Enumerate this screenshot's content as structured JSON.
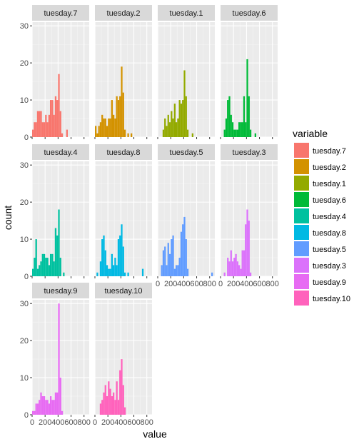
{
  "chart_data": {
    "type": "bar",
    "subtype": "faceted-histogram",
    "title": "",
    "xlabel": "value",
    "ylabel": "count",
    "xlim": [
      0,
      880
    ],
    "ylim": [
      0,
      31
    ],
    "x_ticks": [
      0,
      200,
      400,
      600,
      800
    ],
    "x_tick_labels": [
      "0",
      "200",
      "400",
      "600",
      "800"
    ],
    "y_ticks": [
      0,
      10,
      20,
      30
    ],
    "y_tick_labels": [
      "0",
      "10",
      "20",
      "30"
    ],
    "bin_width": 25,
    "grid": true,
    "legend": {
      "title": "variable",
      "position": "right"
    },
    "panels": [
      {
        "name": "tuesday.7",
        "color": "#F8766D",
        "bins": [
          {
            "x": 0,
            "count": 2
          },
          {
            "x": 25,
            "count": 4
          },
          {
            "x": 50,
            "count": 4
          },
          {
            "x": 75,
            "count": 7
          },
          {
            "x": 100,
            "count": 7
          },
          {
            "x": 125,
            "count": 7
          },
          {
            "x": 150,
            "count": 4
          },
          {
            "x": 175,
            "count": 4
          },
          {
            "x": 200,
            "count": 6
          },
          {
            "x": 225,
            "count": 4
          },
          {
            "x": 250,
            "count": 6
          },
          {
            "x": 275,
            "count": 10
          },
          {
            "x": 300,
            "count": 10
          },
          {
            "x": 325,
            "count": 6
          },
          {
            "x": 350,
            "count": 11
          },
          {
            "x": 375,
            "count": 10
          },
          {
            "x": 400,
            "count": 17
          },
          {
            "x": 425,
            "count": 7
          },
          {
            "x": 450,
            "count": 1
          },
          {
            "x": 525,
            "count": 2
          }
        ]
      },
      {
        "name": "tuesday.2",
        "color": "#D39200",
        "bins": [
          {
            "x": 0,
            "count": 3
          },
          {
            "x": 25,
            "count": 1
          },
          {
            "x": 50,
            "count": 3
          },
          {
            "x": 75,
            "count": 4
          },
          {
            "x": 100,
            "count": 6
          },
          {
            "x": 125,
            "count": 5
          },
          {
            "x": 150,
            "count": 5
          },
          {
            "x": 175,
            "count": 3
          },
          {
            "x": 200,
            "count": 5
          },
          {
            "x": 225,
            "count": 5
          },
          {
            "x": 250,
            "count": 10
          },
          {
            "x": 275,
            "count": 6
          },
          {
            "x": 300,
            "count": 5
          },
          {
            "x": 325,
            "count": 11
          },
          {
            "x": 350,
            "count": 10
          },
          {
            "x": 375,
            "count": 11
          },
          {
            "x": 400,
            "count": 19
          },
          {
            "x": 425,
            "count": 12
          },
          {
            "x": 450,
            "count": 2
          },
          {
            "x": 500,
            "count": 1
          },
          {
            "x": 550,
            "count": 1
          }
        ]
      },
      {
        "name": "tuesday.1",
        "color": "#93AA00",
        "bins": [
          {
            "x": 75,
            "count": 2
          },
          {
            "x": 100,
            "count": 5
          },
          {
            "x": 125,
            "count": 3
          },
          {
            "x": 150,
            "count": 6
          },
          {
            "x": 175,
            "count": 4
          },
          {
            "x": 200,
            "count": 7
          },
          {
            "x": 225,
            "count": 5
          },
          {
            "x": 250,
            "count": 9
          },
          {
            "x": 275,
            "count": 4
          },
          {
            "x": 300,
            "count": 5
          },
          {
            "x": 325,
            "count": 10
          },
          {
            "x": 350,
            "count": 9
          },
          {
            "x": 375,
            "count": 10
          },
          {
            "x": 400,
            "count": 18
          },
          {
            "x": 425,
            "count": 11
          },
          {
            "x": 450,
            "count": 2
          },
          {
            "x": 525,
            "count": 1
          }
        ]
      },
      {
        "name": "tuesday.6",
        "color": "#00BA38",
        "bins": [
          {
            "x": 50,
            "count": 2
          },
          {
            "x": 75,
            "count": 5
          },
          {
            "x": 100,
            "count": 10
          },
          {
            "x": 125,
            "count": 11
          },
          {
            "x": 150,
            "count": 6
          },
          {
            "x": 175,
            "count": 4
          },
          {
            "x": 200,
            "count": 2
          },
          {
            "x": 225,
            "count": 2
          },
          {
            "x": 250,
            "count": 2
          },
          {
            "x": 275,
            "count": 4
          },
          {
            "x": 300,
            "count": 4
          },
          {
            "x": 325,
            "count": 4
          },
          {
            "x": 350,
            "count": 11
          },
          {
            "x": 375,
            "count": 4
          },
          {
            "x": 400,
            "count": 21
          },
          {
            "x": 425,
            "count": 11
          },
          {
            "x": 450,
            "count": 2
          },
          {
            "x": 525,
            "count": 1
          }
        ]
      },
      {
        "name": "tuesday.4",
        "color": "#00C19F",
        "bins": [
          {
            "x": 0,
            "count": 2
          },
          {
            "x": 25,
            "count": 5
          },
          {
            "x": 50,
            "count": 10
          },
          {
            "x": 75,
            "count": 2
          },
          {
            "x": 100,
            "count": 3
          },
          {
            "x": 125,
            "count": 4
          },
          {
            "x": 150,
            "count": 6
          },
          {
            "x": 175,
            "count": 6
          },
          {
            "x": 200,
            "count": 5
          },
          {
            "x": 225,
            "count": 5
          },
          {
            "x": 250,
            "count": 3
          },
          {
            "x": 275,
            "count": 6
          },
          {
            "x": 300,
            "count": 6
          },
          {
            "x": 325,
            "count": 4
          },
          {
            "x": 350,
            "count": 13
          },
          {
            "x": 375,
            "count": 11
          },
          {
            "x": 400,
            "count": 18
          },
          {
            "x": 425,
            "count": 5
          },
          {
            "x": 475,
            "count": 1
          }
        ]
      },
      {
        "name": "tuesday.8",
        "color": "#00B9E3",
        "bins": [
          {
            "x": 25,
            "count": 1
          },
          {
            "x": 75,
            "count": 4
          },
          {
            "x": 100,
            "count": 10
          },
          {
            "x": 125,
            "count": 11
          },
          {
            "x": 150,
            "count": 7
          },
          {
            "x": 175,
            "count": 3
          },
          {
            "x": 200,
            "count": 2
          },
          {
            "x": 225,
            "count": 2
          },
          {
            "x": 250,
            "count": 6
          },
          {
            "x": 275,
            "count": 3
          },
          {
            "x": 300,
            "count": 5
          },
          {
            "x": 325,
            "count": 3
          },
          {
            "x": 350,
            "count": 10
          },
          {
            "x": 375,
            "count": 11
          },
          {
            "x": 400,
            "count": 14
          },
          {
            "x": 425,
            "count": 8
          },
          {
            "x": 450,
            "count": 1
          },
          {
            "x": 500,
            "count": 1
          },
          {
            "x": 725,
            "count": 2
          }
        ]
      },
      {
        "name": "tuesday.5",
        "color": "#619CFF",
        "bins": [
          {
            "x": 50,
            "count": 3
          },
          {
            "x": 75,
            "count": 7
          },
          {
            "x": 100,
            "count": 8
          },
          {
            "x": 125,
            "count": 3
          },
          {
            "x": 150,
            "count": 9
          },
          {
            "x": 175,
            "count": 6
          },
          {
            "x": 200,
            "count": 10
          },
          {
            "x": 225,
            "count": 11
          },
          {
            "x": 250,
            "count": 2
          },
          {
            "x": 275,
            "count": 3
          },
          {
            "x": 300,
            "count": 3
          },
          {
            "x": 325,
            "count": 5
          },
          {
            "x": 350,
            "count": 12
          },
          {
            "x": 375,
            "count": 14
          },
          {
            "x": 400,
            "count": 16
          },
          {
            "x": 425,
            "count": 10
          },
          {
            "x": 450,
            "count": 2
          },
          {
            "x": 825,
            "count": 1
          }
        ]
      },
      {
        "name": "tuesday.3",
        "color": "#DB72FB",
        "bins": [
          {
            "x": 50,
            "count": 1
          },
          {
            "x": 100,
            "count": 5
          },
          {
            "x": 125,
            "count": 4
          },
          {
            "x": 150,
            "count": 7
          },
          {
            "x": 175,
            "count": 4
          },
          {
            "x": 200,
            "count": 5
          },
          {
            "x": 225,
            "count": 6
          },
          {
            "x": 250,
            "count": 4
          },
          {
            "x": 275,
            "count": 3
          },
          {
            "x": 300,
            "count": 2
          },
          {
            "x": 325,
            "count": 7
          },
          {
            "x": 350,
            "count": 7
          },
          {
            "x": 375,
            "count": 14
          },
          {
            "x": 400,
            "count": 18
          },
          {
            "x": 425,
            "count": 15
          },
          {
            "x": 450,
            "count": 1
          }
        ]
      },
      {
        "name": "tuesday.9",
        "color": "#E76BF3",
        "bins": [
          {
            "x": 0,
            "count": 1
          },
          {
            "x": 25,
            "count": 1
          },
          {
            "x": 50,
            "count": 3
          },
          {
            "x": 75,
            "count": 3
          },
          {
            "x": 100,
            "count": 4
          },
          {
            "x": 125,
            "count": 6
          },
          {
            "x": 150,
            "count": 5
          },
          {
            "x": 175,
            "count": 5
          },
          {
            "x": 200,
            "count": 4
          },
          {
            "x": 225,
            "count": 4
          },
          {
            "x": 250,
            "count": 3
          },
          {
            "x": 275,
            "count": 5
          },
          {
            "x": 300,
            "count": 4
          },
          {
            "x": 325,
            "count": 4
          },
          {
            "x": 350,
            "count": 6
          },
          {
            "x": 375,
            "count": 6
          },
          {
            "x": 400,
            "count": 30
          },
          {
            "x": 425,
            "count": 10
          },
          {
            "x": 450,
            "count": 1
          }
        ]
      },
      {
        "name": "tuesday.10",
        "color": "#FF62BC",
        "bins": [
          {
            "x": 75,
            "count": 3
          },
          {
            "x": 100,
            "count": 4
          },
          {
            "x": 125,
            "count": 6
          },
          {
            "x": 150,
            "count": 8
          },
          {
            "x": 175,
            "count": 5
          },
          {
            "x": 200,
            "count": 9
          },
          {
            "x": 225,
            "count": 7
          },
          {
            "x": 250,
            "count": 5
          },
          {
            "x": 275,
            "count": 6
          },
          {
            "x": 300,
            "count": 4
          },
          {
            "x": 325,
            "count": 9
          },
          {
            "x": 350,
            "count": 4
          },
          {
            "x": 375,
            "count": 12
          },
          {
            "x": 400,
            "count": 15
          },
          {
            "x": 425,
            "count": 8
          },
          {
            "x": 450,
            "count": 2
          }
        ]
      }
    ]
  }
}
